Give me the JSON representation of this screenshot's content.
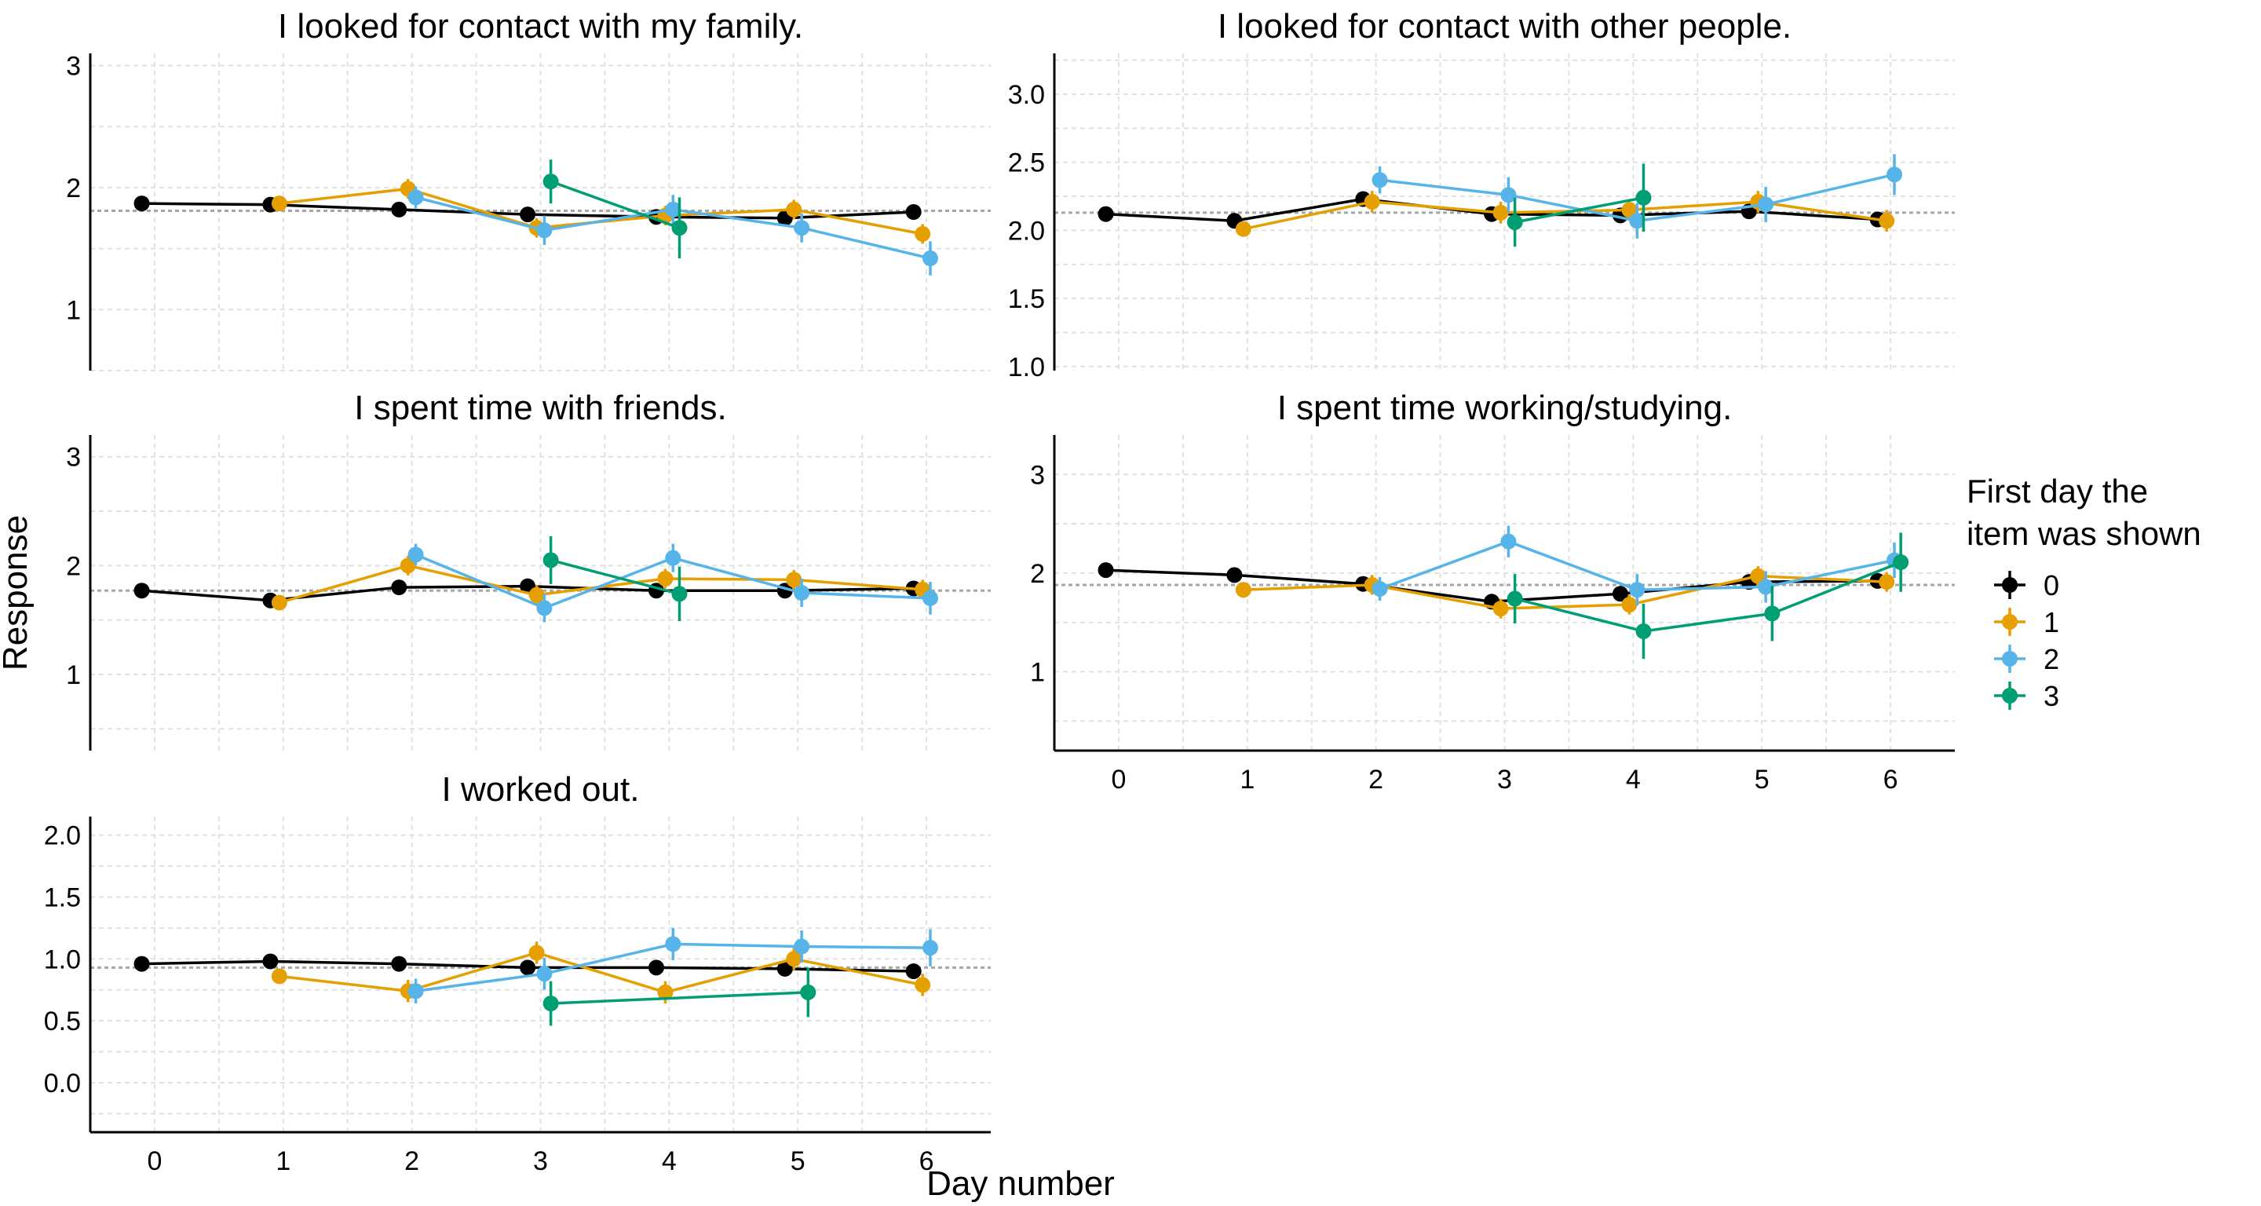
{
  "colors": {
    "0": "#000000",
    "1": "#E69F00",
    "2": "#56B4E9",
    "3": "#009E73",
    "ref": "#a6a6a6",
    "grid": "#e1e1e1"
  },
  "axes": {
    "xlabel": "Day number",
    "ylabel": "Response"
  },
  "legend": {
    "title_line1": "First day the",
    "title_line2": "item was shown",
    "placement": "right",
    "labels": [
      "0",
      "1",
      "2",
      "3"
    ]
  },
  "chart_data": [
    {
      "type": "line",
      "title": "I looked for contact with my family.",
      "x_ticks": [
        "0",
        "1",
        "2",
        "3",
        "4",
        "5",
        "6"
      ],
      "xlim": [
        -0.5,
        6.5
      ],
      "y_ticks": [
        "1",
        "2",
        "3"
      ],
      "ylim": [
        0.5,
        3.1
      ],
      "ref_line": 1.81,
      "series": [
        {
          "name": "0",
          "x": [
            0,
            1,
            2,
            3,
            4,
            5,
            6
          ],
          "y": [
            1.87,
            1.86,
            1.82,
            1.78,
            1.76,
            1.75,
            1.8
          ],
          "err": [
            0.03,
            0.03,
            0.03,
            0.04,
            0.04,
            0.04,
            0.04
          ]
        },
        {
          "name": "1",
          "x": [
            1,
            2,
            3,
            4,
            5,
            6
          ],
          "y": [
            1.87,
            1.99,
            1.67,
            1.77,
            1.82,
            1.62
          ],
          "err": [
            0.05,
            0.08,
            0.08,
            0.08,
            0.08,
            0.08
          ]
        },
        {
          "name": "2",
          "x": [
            2,
            3,
            4,
            5,
            6
          ],
          "y": [
            1.92,
            1.65,
            1.82,
            1.67,
            1.42
          ],
          "err": [
            0.09,
            0.12,
            0.12,
            0.12,
            0.14
          ]
        },
        {
          "name": "3",
          "x": [
            3,
            4
          ],
          "y": [
            2.05,
            1.67
          ],
          "err": [
            0.18,
            0.25
          ]
        }
      ]
    },
    {
      "type": "line",
      "title": "I looked for contact with other people.",
      "x_ticks": [
        "0",
        "1",
        "2",
        "3",
        "4",
        "5",
        "6"
      ],
      "xlim": [
        -0.5,
        6.5
      ],
      "y_ticks": [
        "1.0",
        "1.5",
        "2.0",
        "2.5",
        "3.0"
      ],
      "ylim": [
        0.97,
        3.3
      ],
      "ref_line": 2.13,
      "series": [
        {
          "name": "0",
          "x": [
            0,
            1,
            2,
            3,
            4,
            5,
            6
          ],
          "y": [
            2.12,
            2.07,
            2.23,
            2.12,
            2.11,
            2.14,
            2.08
          ],
          "err": [
            0.03,
            0.03,
            0.04,
            0.04,
            0.04,
            0.04,
            0.04
          ]
        },
        {
          "name": "1",
          "x": [
            1,
            2,
            3,
            4,
            5,
            6
          ],
          "y": [
            2.01,
            2.21,
            2.13,
            2.15,
            2.21,
            2.07
          ],
          "err": [
            0.05,
            0.08,
            0.08,
            0.08,
            0.08,
            0.08
          ]
        },
        {
          "name": "2",
          "x": [
            2,
            3,
            4,
            5,
            6
          ],
          "y": [
            2.37,
            2.26,
            2.07,
            2.19,
            2.41
          ],
          "err": [
            0.1,
            0.13,
            0.13,
            0.13,
            0.15
          ]
        },
        {
          "name": "3",
          "x": [
            3,
            4
          ],
          "y": [
            2.06,
            2.24
          ],
          "err": [
            0.18,
            0.25
          ]
        }
      ]
    },
    {
      "type": "line",
      "title": "I spent time with friends.",
      "x_ticks": [
        "0",
        "1",
        "2",
        "3",
        "4",
        "5",
        "6"
      ],
      "xlim": [
        -0.5,
        6.5
      ],
      "y_ticks": [
        "1",
        "2",
        "3"
      ],
      "ylim": [
        0.3,
        3.2
      ],
      "ref_line": 1.77,
      "series": [
        {
          "name": "0",
          "x": [
            0,
            1,
            2,
            3,
            4,
            5,
            6
          ],
          "y": [
            1.77,
            1.68,
            1.8,
            1.81,
            1.77,
            1.77,
            1.79
          ],
          "err": [
            0.03,
            0.03,
            0.04,
            0.04,
            0.04,
            0.04,
            0.04
          ]
        },
        {
          "name": "1",
          "x": [
            1,
            2,
            3,
            4,
            5,
            6
          ],
          "y": [
            1.66,
            2.0,
            1.73,
            1.88,
            1.87,
            1.78
          ],
          "err": [
            0.05,
            0.09,
            0.09,
            0.09,
            0.09,
            0.09
          ]
        },
        {
          "name": "2",
          "x": [
            2,
            3,
            4,
            5,
            6
          ],
          "y": [
            2.1,
            1.61,
            2.07,
            1.75,
            1.7
          ],
          "err": [
            0.1,
            0.13,
            0.13,
            0.13,
            0.15
          ]
        },
        {
          "name": "3",
          "x": [
            3,
            4
          ],
          "y": [
            2.05,
            1.74
          ],
          "err": [
            0.22,
            0.25
          ]
        }
      ]
    },
    {
      "type": "line",
      "title": "I spent time working/studying.",
      "x_ticks": [
        "0",
        "1",
        "2",
        "3",
        "4",
        "5",
        "6"
      ],
      "xlim": [
        -0.5,
        6.5
      ],
      "y_ticks": [
        "1",
        "2",
        "3"
      ],
      "ylim": [
        0.2,
        3.4
      ],
      "ref_line": 1.88,
      "series": [
        {
          "name": "0",
          "x": [
            0,
            1,
            2,
            3,
            4,
            5,
            6
          ],
          "y": [
            2.03,
            1.98,
            1.89,
            1.71,
            1.79,
            1.91,
            1.92
          ],
          "err": [
            0.04,
            0.04,
            0.04,
            0.05,
            0.05,
            0.05,
            0.05
          ]
        },
        {
          "name": "1",
          "x": [
            1,
            2,
            3,
            4,
            5,
            6
          ],
          "y": [
            1.83,
            1.88,
            1.64,
            1.68,
            1.97,
            1.91
          ],
          "err": [
            0.06,
            0.1,
            0.1,
            0.1,
            0.1,
            0.1
          ]
        },
        {
          "name": "2",
          "x": [
            2,
            3,
            4,
            5,
            6
          ],
          "y": [
            1.84,
            2.32,
            1.83,
            1.86,
            2.13
          ],
          "err": [
            0.12,
            0.16,
            0.16,
            0.16,
            0.18
          ]
        },
        {
          "name": "3",
          "x": [
            3,
            4,
            5,
            6
          ],
          "y": [
            1.74,
            1.41,
            1.59,
            2.11
          ],
          "err": [
            0.25,
            0.28,
            0.28,
            0.3
          ]
        }
      ]
    },
    {
      "type": "line",
      "title": "I worked out.",
      "x_ticks": [
        "0",
        "1",
        "2",
        "3",
        "4",
        "5",
        "6"
      ],
      "xlim": [
        -0.5,
        6.5
      ],
      "y_ticks": [
        "0.0",
        "0.5",
        "1.0",
        "1.5",
        "2.0"
      ],
      "ylim": [
        -0.4,
        2.15
      ],
      "ref_line": 0.93,
      "series": [
        {
          "name": "0",
          "x": [
            0,
            1,
            2,
            3,
            4,
            5,
            6
          ],
          "y": [
            0.96,
            0.98,
            0.96,
            0.93,
            0.93,
            0.92,
            0.9
          ],
          "err": [
            0.03,
            0.03,
            0.04,
            0.04,
            0.04,
            0.04,
            0.04
          ]
        },
        {
          "name": "1",
          "x": [
            1,
            2,
            3,
            4,
            5,
            6
          ],
          "y": [
            0.86,
            0.74,
            1.05,
            0.73,
            1.0,
            0.79
          ],
          "err": [
            0.06,
            0.09,
            0.09,
            0.09,
            0.09,
            0.09
          ]
        },
        {
          "name": "2",
          "x": [
            2,
            3,
            4,
            5,
            6
          ],
          "y": [
            0.74,
            0.88,
            1.12,
            1.1,
            1.09
          ],
          "err": [
            0.1,
            0.13,
            0.13,
            0.13,
            0.15
          ]
        },
        {
          "name": "3",
          "x": [
            3,
            5
          ],
          "y": [
            0.64,
            0.73
          ],
          "err": [
            0.18,
            0.2
          ]
        }
      ]
    }
  ]
}
